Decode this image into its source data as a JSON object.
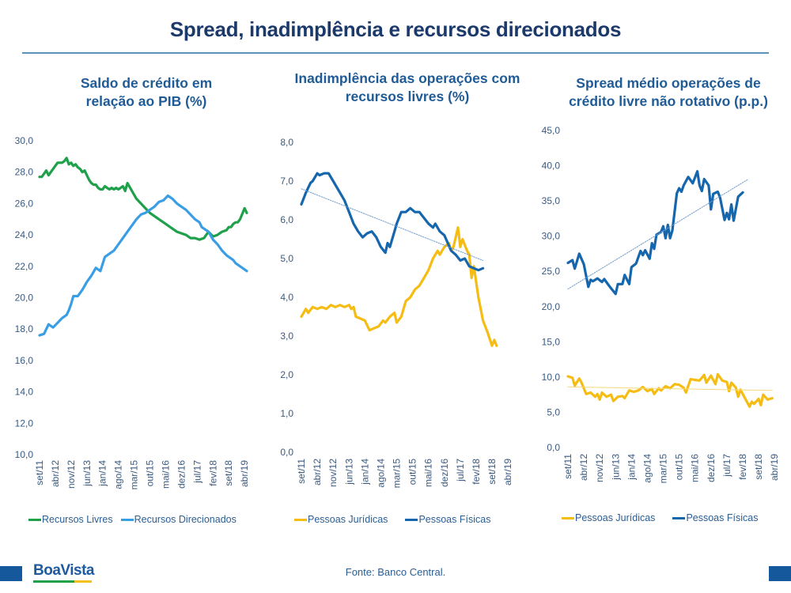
{
  "page": {
    "title": "Spread, inadimplência e recursos direcionados",
    "source": "Fonte: Banco Central.",
    "logo": "BoaVista",
    "colors": {
      "title": "#1b3a6b",
      "subtitle": "#1f5b96",
      "accent_blue": "#15589b",
      "logo_green": "#21a04a",
      "logo_yellow": "#f2c21b"
    }
  },
  "chart_data": [
    {
      "id": "saldo",
      "type": "line",
      "title": "Saldo de crédito em relação ao PIB (%)",
      "title_lines": [
        "Saldo de crédito em",
        "relação ao PIB (%)"
      ],
      "xlabel": "",
      "ylabel": "",
      "ylim": [
        10,
        30
      ],
      "yticks": [
        "10,0",
        "12,0",
        "14,0",
        "16,0",
        "18,0",
        "20,0",
        "22,0",
        "24,0",
        "26,0",
        "28,0",
        "30,0"
      ],
      "ytick_values": [
        10,
        12,
        14,
        16,
        18,
        20,
        22,
        24,
        26,
        28,
        30
      ],
      "x_start": "set/11",
      "x_tick_labels": [
        "set/11",
        "abr/12",
        "nov/12",
        "jun/13",
        "jan/14",
        "ago/14",
        "mar/15",
        "out/15",
        "mai/16",
        "dez/16",
        "jul/17",
        "fev/18",
        "set/18",
        "abr/19"
      ],
      "x_tick_interval_months": 7,
      "grid": false,
      "legend_position": "bottom",
      "series": [
        {
          "name": "Recursos Livres",
          "color": "#1fa04a",
          "values": [
            27.7,
            27.7,
            27.9,
            28.1,
            27.8,
            28.0,
            28.2,
            28.4,
            28.6,
            28.6,
            28.6,
            28.7,
            28.9,
            28.5,
            28.6,
            28.4,
            28.5,
            28.3,
            28.2,
            28.0,
            28.1,
            27.8,
            27.5,
            27.3,
            27.2,
            27.2,
            27.0,
            26.9,
            26.9,
            27.1,
            27.0,
            26.9,
            27.0,
            26.9,
            27.0,
            26.9,
            27.0,
            27.1,
            26.8,
            27.3,
            26.8,
            26.3,
            26.0,
            25.7,
            25.4,
            25.2,
            25.0,
            24.8,
            24.6,
            24.4,
            24.2,
            24.1,
            24.0,
            23.8,
            23.8,
            23.7,
            23.8,
            24.2,
            23.9,
            24.0,
            24.2,
            24.3,
            24.5,
            24.5,
            24.7,
            24.8,
            24.8,
            25.0,
            25.7,
            25.4
          ],
          "month_index": [
            0,
            1,
            2,
            3,
            4,
            5,
            6,
            7,
            8,
            9,
            10,
            11,
            12,
            13,
            14,
            15,
            16,
            17,
            18,
            19,
            20,
            21,
            22,
            23,
            24,
            25,
            26,
            27,
            28,
            29,
            30,
            31,
            32,
            33,
            34,
            35,
            36,
            37,
            38,
            39,
            41,
            43,
            45,
            47,
            49,
            51,
            53,
            55,
            57,
            59,
            61,
            63,
            65,
            67,
            69,
            71,
            73,
            75,
            77,
            79,
            81,
            83,
            84,
            85,
            86,
            87,
            88,
            89,
            91,
            92
          ]
        },
        {
          "name": "Recursos Direcionados",
          "color": "#3a9ee4",
          "values": [
            17.6,
            17.7,
            18.3,
            18.1,
            18.4,
            18.7,
            18.9,
            19.2,
            19.6,
            20.1,
            20.1,
            20.5,
            21.0,
            21.4,
            21.9,
            21.7,
            22.6,
            22.8,
            23.0,
            23.4,
            23.8,
            24.2,
            24.6,
            25.0,
            25.3,
            25.4,
            25.6,
            25.8,
            26.1,
            26.2,
            26.5,
            26.3,
            26.0,
            25.8,
            25.6,
            25.3,
            25.0,
            24.8,
            24.5,
            24.4,
            24.2,
            23.7,
            23.4,
            23.0,
            22.7,
            22.5,
            22.4,
            22.2,
            22.1,
            22.0,
            21.8,
            21.7
          ],
          "month_index": [
            0,
            2,
            4,
            6,
            8,
            10,
            12,
            13,
            14,
            15,
            17,
            19,
            21,
            23,
            25,
            27,
            29,
            31,
            33,
            35,
            37,
            39,
            41,
            43,
            45,
            47,
            49,
            51,
            53,
            55,
            57,
            59,
            61,
            63,
            65,
            67,
            69,
            71,
            72,
            73,
            75,
            77,
            79,
            81,
            83,
            85,
            86,
            87,
            88,
            89,
            91,
            92
          ]
        }
      ]
    },
    {
      "id": "inadimplencia",
      "type": "line",
      "title": "Inadimplência das operações com recursos livres (%)",
      "title_lines": [
        "Inadimplência das operações com",
        "recursos livres (%)"
      ],
      "xlabel": "",
      "ylabel": "",
      "ylim": [
        0,
        8
      ],
      "yticks": [
        "0,0",
        "1,0",
        "2,0",
        "3,0",
        "4,0",
        "5,0",
        "6,0",
        "7,0",
        "8,0"
      ],
      "ytick_values": [
        0,
        1,
        2,
        3,
        4,
        5,
        6,
        7,
        8
      ],
      "x_start": "set/11",
      "x_tick_labels": [
        "set/11",
        "abr/12",
        "nov/12",
        "jun/13",
        "jan/14",
        "ago/14",
        "mar/15",
        "out/15",
        "mai/16",
        "dez/16",
        "jul/17",
        "fev/18",
        "set/18",
        "abr/19"
      ],
      "x_tick_interval_months": 7,
      "grid": false,
      "legend_position": "bottom",
      "series": [
        {
          "name": "Pessoas Jurídicas",
          "color": "#f5bd14",
          "values": [
            3.5,
            3.7,
            3.6,
            3.75,
            3.7,
            3.75,
            3.7,
            3.8,
            3.75,
            3.8,
            3.75,
            3.8,
            3.7,
            3.75,
            3.5,
            3.45,
            3.4,
            3.15,
            3.2,
            3.25,
            3.4,
            3.35,
            3.5,
            3.6,
            3.35,
            3.5,
            3.9,
            4.0,
            4.2,
            4.3,
            4.5,
            4.7,
            5.0,
            5.2,
            5.1,
            5.3,
            5.4,
            5.2,
            5.3,
            5.8,
            5.3,
            5.5,
            5.2,
            5.1,
            4.5,
            4.8,
            4.0,
            3.4,
            3.1,
            2.75,
            2.9,
            2.75
          ],
          "month_index": [
            0,
            2,
            3,
            5,
            7,
            9,
            11,
            13,
            15,
            17,
            19,
            21,
            22,
            23,
            24,
            26,
            28,
            30,
            32,
            34,
            36,
            37,
            39,
            41,
            42,
            44,
            46,
            48,
            50,
            52,
            54,
            56,
            58,
            60,
            61,
            63,
            65,
            66,
            67,
            69,
            70,
            71,
            73,
            74,
            75,
            76,
            78,
            80,
            82,
            84,
            85,
            86
          ]
        },
        {
          "name": "Pessoas Físicas",
          "color": "#1566ad",
          "values": [
            6.4,
            6.7,
            6.95,
            7.0,
            7.2,
            7.15,
            7.2,
            7.2,
            7.0,
            6.7,
            6.5,
            6.2,
            5.9,
            5.7,
            5.55,
            5.65,
            5.7,
            5.55,
            5.3,
            5.15,
            5.4,
            5.3,
            5.7,
            5.9,
            6.2,
            6.2,
            6.3,
            6.2,
            6.2,
            6.05,
            5.9,
            5.8,
            5.9,
            5.7,
            5.6,
            5.2,
            5.1,
            4.95,
            5.0,
            4.8,
            4.75,
            4.7,
            4.75
          ],
          "month_index": [
            0,
            2,
            4,
            5,
            7,
            8,
            10,
            12,
            14,
            17,
            19,
            21,
            23,
            25,
            27,
            29,
            31,
            33,
            35,
            37,
            38,
            39,
            41,
            42,
            44,
            46,
            48,
            50,
            52,
            54,
            56,
            58,
            59,
            61,
            63,
            66,
            68,
            70,
            72,
            74,
            76,
            78,
            80
          ]
        },
        {
          "name": "Tendência Pessoas Físicas",
          "color": "#6f9ccc",
          "dashed": true,
          "values": [
            6.8,
            4.95
          ],
          "month_index": [
            0,
            80
          ]
        }
      ]
    },
    {
      "id": "spread",
      "type": "line",
      "title": "Spread médio operações de crédito livre não rotativo (p.p.)",
      "title_lines": [
        "Spread médio operações de",
        "crédito livre não rotativo (p.p.)"
      ],
      "xlabel": "",
      "ylabel": "",
      "ylim": [
        0,
        45
      ],
      "yticks": [
        "0,0",
        "5,0",
        "10,0",
        "15,0",
        "20,0",
        "25,0",
        "30,0",
        "35,0",
        "40,0",
        "45,0"
      ],
      "ytick_values": [
        0,
        5,
        10,
        15,
        20,
        25,
        30,
        35,
        40,
        45
      ],
      "x_start": "set/11",
      "x_tick_labels": [
        "set/11",
        "abr/12",
        "nov/12",
        "jun/13",
        "jan/14",
        "ago/14",
        "mar/15",
        "out/15",
        "mai/16",
        "dez/16",
        "jul/17",
        "fev/18",
        "set/18",
        "abr/19"
      ],
      "x_tick_interval_months": 7,
      "grid": false,
      "legend_position": "bottom",
      "series": [
        {
          "name": "Pessoas Jurídicas",
          "color": "#f5bd14",
          "values": [
            10.1,
            9.9,
            8.8,
            9.8,
            9.2,
            7.6,
            7.8,
            7.2,
            7.6,
            6.8,
            7.8,
            7.2,
            7.5,
            6.6,
            7.2,
            7.3,
            7.0,
            8.1,
            7.9,
            8.1,
            8.6,
            8.0,
            8.3,
            7.6,
            8.4,
            8.1,
            8.7,
            8.4,
            9.0,
            8.9,
            8.5,
            7.8,
            9.7,
            9.6,
            9.5,
            10.3,
            9.2,
            10.2,
            9.0,
            10.4,
            9.5,
            9.3,
            8.0,
            9.2,
            8.5,
            7.2,
            8.2,
            7.0,
            5.8,
            6.5,
            6.2,
            6.9,
            6.0,
            7.5,
            6.8,
            7.0
          ],
          "month_index": [
            0,
            2,
            3,
            5,
            6,
            8,
            10,
            12,
            13,
            14,
            15,
            17,
            19,
            20,
            22,
            24,
            25,
            27,
            29,
            31,
            33,
            35,
            37,
            38,
            40,
            41,
            43,
            45,
            47,
            49,
            51,
            52,
            54,
            56,
            58,
            60,
            61,
            63,
            65,
            66,
            68,
            70,
            71,
            72,
            74,
            75,
            76,
            78,
            80,
            81,
            82,
            84,
            85,
            86,
            88,
            90
          ]
        },
        {
          "name": "Pessoas Físicas",
          "color": "#1566ad",
          "values": [
            26.2,
            26.6,
            25.4,
            27.5,
            26.0,
            22.8,
            23.8,
            23.6,
            24.0,
            23.5,
            23.9,
            23.0,
            22.6,
            21.8,
            23.2,
            23.2,
            24.5,
            23.2,
            25.6,
            26.1,
            27.9,
            27.3,
            28.0,
            26.8,
            29.0,
            28.2,
            30.2,
            30.6,
            31.4,
            29.7,
            31.6,
            29.7,
            30.8,
            36.1,
            36.8,
            36.3,
            37.2,
            38.4,
            37.5,
            39.2,
            37.2,
            36.4,
            38.1,
            37.2,
            33.8,
            36.0,
            36.3,
            35.5,
            32.3,
            33.3,
            32.4,
            34.5,
            32.2,
            35.6,
            36.2
          ],
          "month_index": [
            0,
            2,
            3,
            5,
            7,
            9,
            10,
            11,
            13,
            15,
            16,
            18,
            19,
            21,
            22,
            24,
            25,
            27,
            28,
            30,
            32,
            33,
            34,
            36,
            37,
            38,
            39,
            41,
            42,
            43,
            44,
            45,
            46,
            48,
            49,
            50,
            51,
            53,
            55,
            57,
            58,
            59,
            60,
            62,
            63,
            64,
            66,
            67,
            69,
            70,
            71,
            72,
            73,
            75,
            77
          ]
        },
        {
          "name": "Tendência Pessoas Físicas",
          "color": "#6f9ccc",
          "dashed": true,
          "values": [
            22.5,
            38.0
          ],
          "month_index": [
            0,
            79
          ]
        },
        {
          "name": "Tendência Pessoas Jurídicas",
          "color": "#f5d87a",
          "dashed": false,
          "values": [
            8.6,
            8.1
          ],
          "month_index": [
            0,
            90
          ]
        }
      ]
    }
  ]
}
